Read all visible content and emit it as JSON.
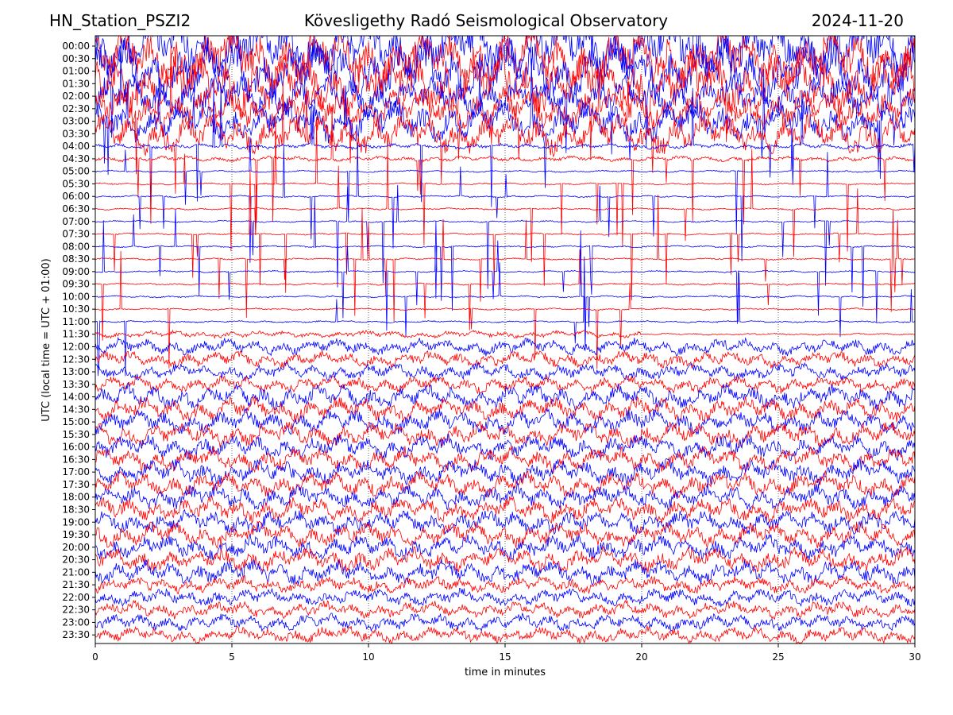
{
  "header": {
    "station": "HN_Station_PSZI2",
    "observatory": "Kövesligethy Radó Seismological Observatory",
    "date": "2024-11-20"
  },
  "chart_data": {
    "type": "line",
    "title": "Kövesligethy Radó Seismological Observatory",
    "xlabel": "time in minutes",
    "ylabel": "UTC (local time = UTC + 01:00)",
    "xlim": [
      0,
      30
    ],
    "x_ticks": [
      0,
      5,
      10,
      15,
      20,
      25,
      30
    ],
    "x_tick_labels": [
      "0",
      "5",
      "10",
      "15",
      "20",
      "25",
      "30"
    ],
    "grid": "vertical dotted lines at x ticks",
    "trace_colors": [
      "#0000ff",
      "#ff0000"
    ],
    "color_pattern": "alternating blue/red per row starting with blue at 00:00",
    "rows": [
      "00:00",
      "00:30",
      "01:00",
      "01:30",
      "02:00",
      "02:30",
      "03:00",
      "03:30",
      "04:00",
      "04:30",
      "05:00",
      "05:30",
      "06:00",
      "06:30",
      "07:00",
      "07:30",
      "08:00",
      "08:30",
      "09:00",
      "09:30",
      "10:00",
      "10:30",
      "11:00",
      "11:30",
      "12:00",
      "12:30",
      "13:00",
      "13:30",
      "14:00",
      "14:30",
      "15:00",
      "15:30",
      "16:00",
      "16:30",
      "17:00",
      "17:30",
      "18:00",
      "18:30",
      "19:00",
      "19:30",
      "20:00",
      "20:30",
      "21:00",
      "21:30",
      "22:00",
      "22:30",
      "23:00",
      "23:30"
    ]
  }
}
